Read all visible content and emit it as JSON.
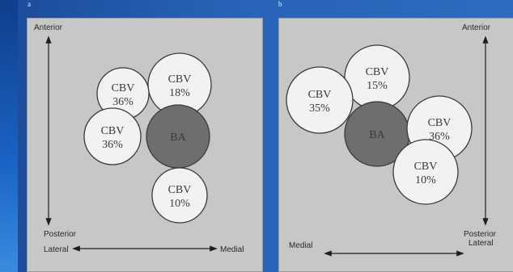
{
  "panels": [
    {
      "id": "a",
      "corner_label": "a",
      "labels": {
        "anterior": "Anterior",
        "posterior": "Posterior",
        "lateral": "Lateral",
        "medial": "Medial"
      },
      "circles": [
        {
          "line1": "CBV",
          "line2": "18%",
          "fill": "#f2f2f2",
          "dark": false
        },
        {
          "line1": "CBV",
          "line2": "36%",
          "fill": "#f2f2f2",
          "dark": false
        },
        {
          "line1": "CBV",
          "line2": "36%",
          "fill": "#f2f2f2",
          "dark": false
        },
        {
          "line1": "BA",
          "line2": "",
          "fill": "#6e6e6e",
          "dark": true
        },
        {
          "line1": "CBV",
          "line2": "10%",
          "fill": "#f2f2f2",
          "dark": false
        }
      ]
    },
    {
      "id": "b",
      "corner_label": "b",
      "labels": {
        "anterior": "Anterior",
        "posterior": "Posterior",
        "lateral": "Lateral",
        "medial": "Medial"
      },
      "circles": [
        {
          "line1": "CBV",
          "line2": "15%",
          "fill": "#f2f2f2",
          "dark": false
        },
        {
          "line1": "CBV",
          "line2": "35%",
          "fill": "#f2f2f2",
          "dark": false
        },
        {
          "line1": "BA",
          "line2": "",
          "fill": "#6e6e6e",
          "dark": true
        },
        {
          "line1": "CBV",
          "line2": "36%",
          "fill": "#f2f2f2",
          "dark": false
        },
        {
          "line1": "CBV",
          "line2": "10%",
          "fill": "#f2f2f2",
          "dark": false
        }
      ]
    }
  ],
  "colors": {
    "panel_bg": "#c7c7c7",
    "circle_light": "#f2f2f2",
    "circle_dark": "#6e6e6e",
    "slide_blue": "#2763b8"
  }
}
